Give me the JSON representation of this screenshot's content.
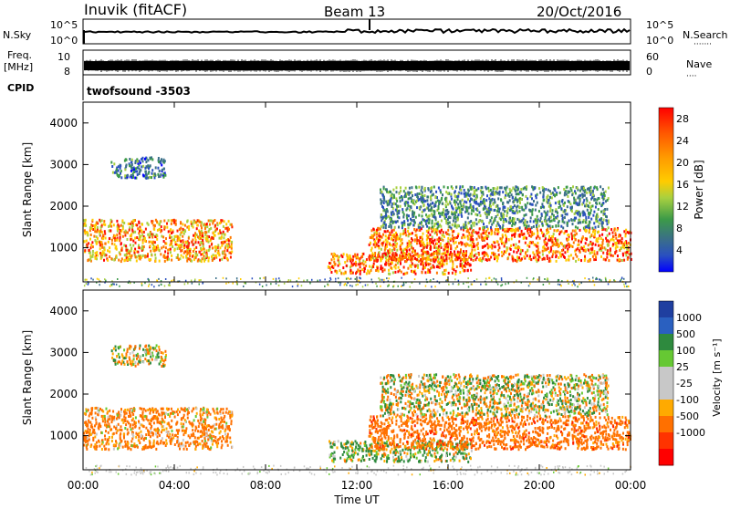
{
  "header": {
    "station": "Inuvik (fitACF)",
    "beam": "Beam 13",
    "date": "20/Oct/2016"
  },
  "noise_panel": {
    "left_label": "N.Sky",
    "right_label": "N.Search",
    "right_dots": "·······",
    "left_ticks": [
      "10^5",
      "10^0"
    ],
    "right_ticks": [
      "10^5",
      "10^0"
    ]
  },
  "freq_panel": {
    "left_label_1": "Freq.",
    "left_label_2": "[MHz]",
    "right_label": "Nave",
    "right_dots": "····",
    "left_ticks": [
      "10",
      "8"
    ],
    "right_ticks": [
      "60",
      "0"
    ]
  },
  "cpid": {
    "label": "CPID",
    "value": "twofsound  -3503"
  },
  "power_panel": {
    "ylabel": "Slant Range [km]",
    "colorbar_label": "Power [dB]",
    "colorbar_ticks": [
      "28",
      "24",
      "20",
      "16",
      "12",
      "8",
      "4"
    ],
    "colorbar_colors": [
      "#ff0000",
      "#ff4400",
      "#ff8800",
      "#ffbb00",
      "#c8d800",
      "#55bb44",
      "#2e8a3e",
      "#3f6c98",
      "#2a50b8",
      "#0000ff"
    ]
  },
  "velocity_panel": {
    "ylabel": "Velocity [m s⁻¹]",
    "colorbar_ticks": [
      "1000",
      "500",
      "100",
      "25",
      "-25",
      "-100",
      "-500",
      "-1000"
    ],
    "colorbar_colors": [
      "#1f3fa0",
      "#2a60c0",
      "#2e8a3e",
      "#66c833",
      "#c8c8c8",
      "#c8c8c8",
      "#ffaa00",
      "#ff7000",
      "#ff3300",
      "#ff0000"
    ]
  },
  "xaxis": {
    "label": "Time UT",
    "ticks": [
      "00:00",
      "04:00",
      "08:00",
      "12:00",
      "16:00",
      "20:00",
      "00:00"
    ]
  },
  "chart_data": [
    {
      "type": "heatmap",
      "title": "Power",
      "ylabel": "Slant Range [km]",
      "xlabel": "Time UT",
      "xlim": [
        0,
        24
      ],
      "ylim": [
        180,
        4500
      ],
      "y_ticks": [
        1000,
        2000,
        3000,
        4000
      ],
      "colorbar": {
        "label": "Power [dB]",
        "range": [
          0,
          30
        ],
        "ticks": [
          4,
          8,
          12,
          16,
          20,
          24,
          28
        ]
      },
      "regions": [
        {
          "t": [
            0.0,
            6.5
          ],
          "r": [
            700,
            1700
          ],
          "value": 24
        },
        {
          "t": [
            1.2,
            3.6
          ],
          "r": [
            2700,
            3200
          ],
          "value": 10
        },
        {
          "t": [
            10.7,
            17.0
          ],
          "r": [
            400,
            900
          ],
          "value": 26
        },
        {
          "t": [
            12.5,
            24.0
          ],
          "r": [
            700,
            1500
          ],
          "value": 26
        },
        {
          "t": [
            13.0,
            23.0
          ],
          "r": [
            1500,
            2500
          ],
          "value": 12
        }
      ]
    },
    {
      "type": "heatmap",
      "title": "Velocity",
      "ylabel": "Slant Range [km]",
      "xlabel": "Time UT",
      "xlim": [
        0,
        24
      ],
      "ylim": [
        180,
        4500
      ],
      "y_ticks": [
        1000,
        2000,
        3000,
        4000
      ],
      "colorbar": {
        "label": "Velocity [m s⁻¹]",
        "range": [
          -1000,
          1000
        ],
        "ticks": [
          1000,
          500,
          100,
          25,
          -25,
          -100,
          -500,
          -1000
        ]
      },
      "regions": [
        {
          "t": [
            0.0,
            6.5
          ],
          "r": [
            700,
            1700
          ],
          "value": -200
        },
        {
          "t": [
            1.2,
            3.6
          ],
          "r": [
            2700,
            3200
          ],
          "value": 0
        },
        {
          "t": [
            10.7,
            17.0
          ],
          "r": [
            400,
            900
          ],
          "value": 100
        },
        {
          "t": [
            12.5,
            24.0
          ],
          "r": [
            700,
            1500
          ],
          "value": -300
        },
        {
          "t": [
            13.0,
            23.0
          ],
          "r": [
            1500,
            2500
          ],
          "value": 0
        }
      ]
    }
  ]
}
